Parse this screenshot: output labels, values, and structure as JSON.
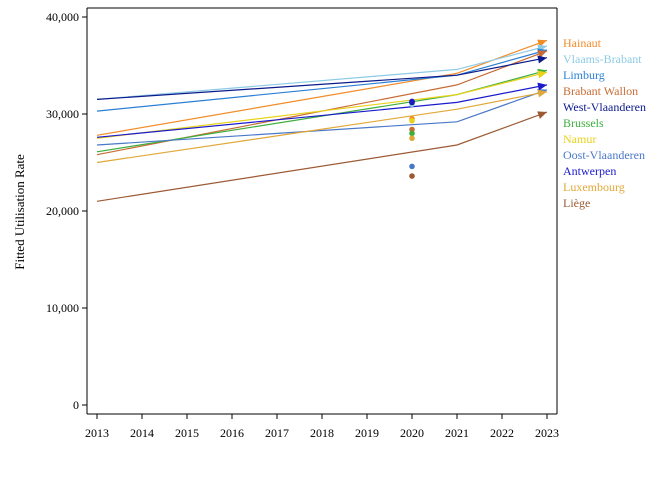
{
  "chart_data": {
    "type": "line",
    "title": "",
    "xlabel": "",
    "ylabel": "Fitted Utilisation Rate",
    "xlim": [
      2013,
      2023
    ],
    "ylim": [
      0,
      41000
    ],
    "x_ticks": [
      "2013",
      "2014",
      "2015",
      "2016",
      "2017",
      "2018",
      "2019",
      "2020",
      "2021",
      "2022",
      "2023"
    ],
    "y_ticks": [
      {
        "value": 0,
        "label": "0"
      },
      {
        "value": 10000,
        "label": "10,000"
      },
      {
        "value": 20000,
        "label": "20,000"
      },
      {
        "value": 30000,
        "label": "30,000"
      },
      {
        "value": 40000,
        "label": "40,000"
      }
    ],
    "grid": false,
    "legend_position": "right",
    "series": [
      {
        "name": "Hainaut",
        "color": "#f28c28",
        "x": [
          2013,
          2021,
          2023
        ],
        "values": [
          27800,
          34200,
          37600
        ],
        "point_2020": 29500
      },
      {
        "name": "Vlaams-Brabant",
        "color": "#8ecae6",
        "x": [
          2013,
          2021,
          2023
        ],
        "values": [
          31500,
          34600,
          37000
        ],
        "point_2020": 31000
      },
      {
        "name": "Limburg",
        "color": "#2a7fd4",
        "x": [
          2013,
          2021,
          2023
        ],
        "values": [
          30300,
          34000,
          36600
        ],
        "point_2020": 31200
      },
      {
        "name": "Brabant Wallon",
        "color": "#c96b35",
        "x": [
          2013,
          2021,
          2023
        ],
        "values": [
          25800,
          33000,
          36500
        ],
        "point_2020": 28400
      },
      {
        "name": "West-Vlaanderen",
        "color": "#0b1a8c",
        "x": [
          2013,
          2021,
          2023
        ],
        "values": [
          31500,
          34000,
          35800
        ],
        "point_2020": 31200
      },
      {
        "name": "Brussels",
        "color": "#3dae3d",
        "x": [
          2013,
          2021,
          2023
        ],
        "values": [
          26100,
          32000,
          34500
        ],
        "point_2020": 28000
      },
      {
        "name": "Namur",
        "color": "#e8d21a",
        "x": [
          2013,
          2021,
          2023
        ],
        "values": [
          27500,
          32000,
          34300
        ],
        "point_2020": 29300
      },
      {
        "name": "Oost-Vlaanderen",
        "color": "#4a78c8",
        "x": [
          2013,
          2021,
          2023
        ],
        "values": [
          26800,
          29200,
          32500
        ],
        "point_2020": 24600
      },
      {
        "name": "Antwerpen",
        "color": "#1a1acc",
        "x": [
          2013,
          2021,
          2023
        ],
        "values": [
          27600,
          31200,
          33000
        ],
        "point_2020": 31300
      },
      {
        "name": "Luxembourg",
        "color": "#e0a838",
        "x": [
          2013,
          2021,
          2023
        ],
        "values": [
          25000,
          30500,
          32300
        ],
        "point_2020": 27500
      },
      {
        "name": "Liège",
        "color": "#9c5a34",
        "x": [
          2013,
          2021,
          2023
        ],
        "values": [
          21000,
          26800,
          30200
        ],
        "point_2020": 23600
      }
    ]
  }
}
